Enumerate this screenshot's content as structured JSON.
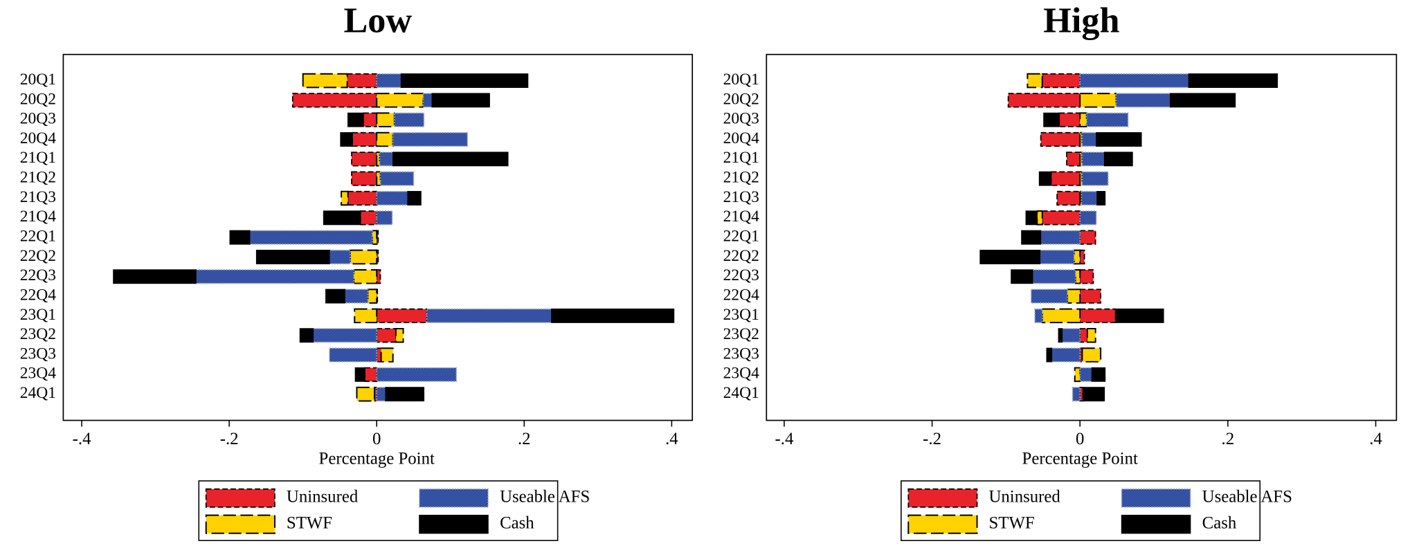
{
  "chart_data": [
    {
      "type": "bar",
      "orientation": "horizontal",
      "stacked": true,
      "title": "Low",
      "xlabel": "Percentage Point",
      "categories": [
        "20Q1",
        "20Q2",
        "20Q3",
        "20Q4",
        "21Q1",
        "21Q2",
        "21Q3",
        "21Q4",
        "22Q1",
        "22Q2",
        "22Q3",
        "22Q4",
        "23Q1",
        "23Q2",
        "23Q3",
        "23Q4",
        "24Q1"
      ],
      "xlim": [
        -0.425,
        0.428
      ],
      "xticks": [
        {
          "value": -0.4,
          "label": "-.4"
        },
        {
          "value": -0.2,
          "label": "-.2"
        },
        0,
        {
          "value": 0.2,
          "label": ".2"
        },
        {
          "value": 0.4,
          "label": ".4"
        }
      ],
      "series": [
        {
          "name": "Uninsured",
          "color": "#e8232a",
          "values": [
            -0.04,
            -0.114,
            -0.018,
            -0.033,
            -0.034,
            -0.034,
            -0.039,
            -0.022,
            0.002,
            0.002,
            0.005,
            0.001,
            0.068,
            0.026,
            0.006,
            -0.016,
            -0.003
          ]
        },
        {
          "name": "STWF",
          "color": "#ffd200",
          "values": [
            -0.06,
            0.063,
            0.024,
            0.022,
            0.004,
            0.005,
            -0.009,
            0,
            -0.006,
            -0.036,
            -0.031,
            -0.012,
            -0.03,
            0.01,
            0.016,
            0,
            -0.024
          ]
        },
        {
          "name": "Useable AFS",
          "color": "#3551a4",
          "values": [
            0.033,
            0.012,
            0.04,
            0.101,
            0.018,
            0.045,
            0.042,
            0.021,
            -0.166,
            -0.028,
            -0.214,
            -0.031,
            0.169,
            -0.086,
            -0.064,
            0.108,
            0.012
          ]
        },
        {
          "name": "Cash",
          "color": "#000000",
          "values": [
            0.172,
            0.078,
            -0.021,
            -0.016,
            0.156,
            0,
            0.018,
            -0.05,
            -0.027,
            -0.099,
            -0.112,
            -0.026,
            0.166,
            -0.018,
            0,
            -0.013,
            0.052
          ]
        }
      ]
    },
    {
      "type": "bar",
      "orientation": "horizontal",
      "stacked": true,
      "title": "High",
      "xlabel": "Percentage Point",
      "categories": [
        "20Q1",
        "20Q2",
        "20Q3",
        "20Q4",
        "21Q1",
        "21Q2",
        "21Q3",
        "21Q4",
        "22Q1",
        "22Q2",
        "22Q3",
        "22Q4",
        "23Q1",
        "23Q2",
        "23Q3",
        "23Q4",
        "24Q1"
      ],
      "xlim": [
        -0.424,
        0.428
      ],
      "xticks": [
        {
          "value": -0.4,
          "label": "-.4"
        },
        {
          "value": -0.2,
          "label": "-.2"
        },
        0,
        {
          "value": 0.2,
          "label": ".2"
        },
        {
          "value": 0.4,
          "label": ".4"
        }
      ],
      "series": [
        {
          "name": "Uninsured",
          "color": "#e8232a",
          "values": [
            -0.051,
            -0.097,
            -0.028,
            -0.053,
            -0.018,
            -0.039,
            -0.031,
            -0.051,
            0.021,
            0.006,
            0.018,
            0.028,
            0.048,
            0.01,
            0.003,
            0,
            0.004
          ]
        },
        {
          "name": "STWF",
          "color": "#ffd200",
          "values": [
            -0.02,
            0.049,
            0.009,
            0.003,
            0.003,
            0.003,
            0.002,
            -0.007,
            0,
            -0.008,
            -0.006,
            -0.017,
            -0.051,
            0.011,
            0.025,
            -0.007,
            0
          ]
        },
        {
          "name": "Useable AFS",
          "color": "#3551a4",
          "values": [
            0.147,
            0.073,
            0.056,
            0.019,
            0.03,
            0.035,
            0.021,
            0.022,
            -0.053,
            -0.046,
            -0.058,
            -0.049,
            -0.01,
            -0.024,
            -0.038,
            0.016,
            -0.01
          ]
        },
        {
          "name": "Cash",
          "color": "#000000",
          "values": [
            0.12,
            0.088,
            -0.021,
            0.061,
            0.038,
            -0.016,
            0.011,
            -0.015,
            -0.026,
            -0.081,
            -0.029,
            0,
            0.065,
            -0.005,
            -0.007,
            0.018,
            0.029
          ]
        }
      ]
    }
  ]
}
